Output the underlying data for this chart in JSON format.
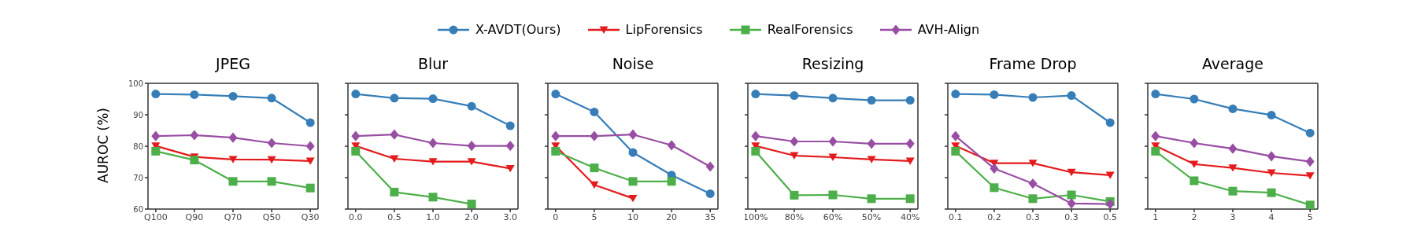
{
  "chart_data": [
    {
      "type": "line",
      "title": "JPEG",
      "ylabel": "AUROC (%)",
      "legend": "top",
      "categories": [
        "Q100",
        "Q90",
        "Q70",
        "Q50",
        "Q30"
      ],
      "ylim": [
        60,
        100
      ],
      "yticks": [
        60,
        70,
        80,
        90,
        100
      ],
      "grid": false,
      "series": [
        {
          "name": "X-AVDT(Ours)",
          "color": "#377eb8",
          "marker": "circle",
          "values": [
            96.6,
            96.4,
            95.9,
            95.3,
            87.5
          ]
        },
        {
          "name": "LipForensics",
          "color": "#e41a1c",
          "marker": "triangle",
          "values": [
            80.1,
            76.6,
            75.8,
            75.7,
            75.3
          ]
        },
        {
          "name": "RealForensics",
          "color": "#4daf4a",
          "marker": "square",
          "values": [
            78.4,
            75.6,
            68.8,
            68.8,
            66.7
          ]
        },
        {
          "name": "AVH-Align",
          "color": "#984ea3",
          "marker": "diamond",
          "values": [
            83.2,
            83.5,
            82.7,
            81.0,
            80.0
          ]
        }
      ]
    },
    {
      "type": "line",
      "title": "Blur",
      "tick_labels": "x",
      "categories": [
        "0.0",
        "0.5",
        "1.0",
        "2.0",
        "3.0"
      ],
      "ylim": [
        60,
        100
      ],
      "yticks": [
        60,
        70,
        80,
        90,
        100
      ],
      "grid": false,
      "series": [
        {
          "color": "#377eb8",
          "marker": "circle",
          "values": [
            96.6,
            95.3,
            95.1,
            92.7,
            86.5
          ]
        },
        {
          "color": "#e41a1c",
          "marker": "triangle",
          "values": [
            80.1,
            76.0,
            75.1,
            75.1,
            72.9
          ]
        },
        {
          "color": "#4daf4a",
          "marker": "square",
          "values": [
            78.4,
            65.4,
            63.8,
            61.6,
            null
          ]
        },
        {
          "color": "#984ea3",
          "marker": "diamond",
          "values": [
            83.2,
            83.7,
            81.0,
            80.1,
            80.1
          ]
        }
      ]
    },
    {
      "type": "line",
      "title": "Noise",
      "tick_labels": "x",
      "categories": [
        "0",
        "5",
        "10",
        "20",
        "35"
      ],
      "ylim": [
        60,
        100
      ],
      "yticks": [
        60,
        70,
        80,
        90,
        100
      ],
      "grid": false,
      "series": [
        {
          "color": "#377eb8",
          "marker": "circle",
          "values": [
            96.6,
            90.9,
            78.0,
            70.8,
            64.9
          ]
        },
        {
          "color": "#e41a1c",
          "marker": "triangle",
          "values": [
            80.1,
            67.7,
            63.4,
            null,
            null
          ]
        },
        {
          "color": "#4daf4a",
          "marker": "square",
          "values": [
            78.4,
            73.1,
            68.8,
            68.8,
            null
          ]
        },
        {
          "color": "#984ea3",
          "marker": "diamond",
          "values": [
            83.2,
            83.2,
            83.7,
            80.3,
            73.5
          ]
        }
      ]
    },
    {
      "type": "line",
      "title": "Resizing",
      "tick_labels": "x",
      "categories": [
        "100%",
        "80%",
        "60%",
        "50%",
        "40%"
      ],
      "ylim": [
        60,
        100
      ],
      "yticks": [
        60,
        70,
        80,
        90,
        100
      ],
      "grid": false,
      "series": [
        {
          "color": "#377eb8",
          "marker": "circle",
          "values": [
            96.6,
            96.1,
            95.3,
            94.6,
            94.6
          ]
        },
        {
          "color": "#e41a1c",
          "marker": "triangle",
          "values": [
            80.1,
            77.0,
            76.5,
            75.8,
            75.3
          ]
        },
        {
          "color": "#4daf4a",
          "marker": "square",
          "values": [
            78.4,
            64.4,
            64.5,
            63.3,
            63.3
          ]
        },
        {
          "color": "#984ea3",
          "marker": "diamond",
          "values": [
            83.2,
            81.5,
            81.5,
            80.8,
            80.8
          ]
        }
      ]
    },
    {
      "type": "line",
      "title": "Frame Drop",
      "tick_labels": "x",
      "categories": [
        "0.1",
        "0.2",
        "0.3",
        "0.3",
        "0.5"
      ],
      "ylim": [
        60,
        100
      ],
      "yticks": [
        60,
        70,
        80,
        90,
        100
      ],
      "grid": false,
      "series": [
        {
          "color": "#377eb8",
          "marker": "circle",
          "values": [
            96.6,
            96.4,
            95.5,
            96.1,
            87.5
          ]
        },
        {
          "color": "#e41a1c",
          "marker": "triangle",
          "values": [
            80.1,
            74.6,
            74.6,
            71.7,
            70.8
          ]
        },
        {
          "color": "#4daf4a",
          "marker": "square",
          "values": [
            78.4,
            66.8,
            63.3,
            64.5,
            62.4
          ]
        },
        {
          "color": "#984ea3",
          "marker": "diamond",
          "values": [
            83.2,
            72.9,
            68.1,
            61.8,
            61.6
          ]
        }
      ]
    },
    {
      "type": "line",
      "title": "Average",
      "tick_labels": "x",
      "categories": [
        "1",
        "2",
        "3",
        "4",
        "5"
      ],
      "ylim": [
        60,
        100
      ],
      "yticks": [
        60,
        70,
        80,
        90,
        100
      ],
      "grid": false,
      "series": [
        {
          "color": "#377eb8",
          "marker": "circle",
          "values": [
            96.6,
            95.0,
            91.9,
            89.9,
            84.2
          ]
        },
        {
          "color": "#e41a1c",
          "marker": "triangle",
          "values": [
            80.1,
            74.3,
            73.1,
            71.5,
            70.6
          ]
        },
        {
          "color": "#4daf4a",
          "marker": "square",
          "values": [
            78.4,
            69.0,
            65.7,
            65.2,
            61.3
          ]
        },
        {
          "color": "#984ea3",
          "marker": "diamond",
          "values": [
            83.2,
            81.0,
            79.2,
            76.8,
            75.1
          ]
        }
      ]
    }
  ]
}
